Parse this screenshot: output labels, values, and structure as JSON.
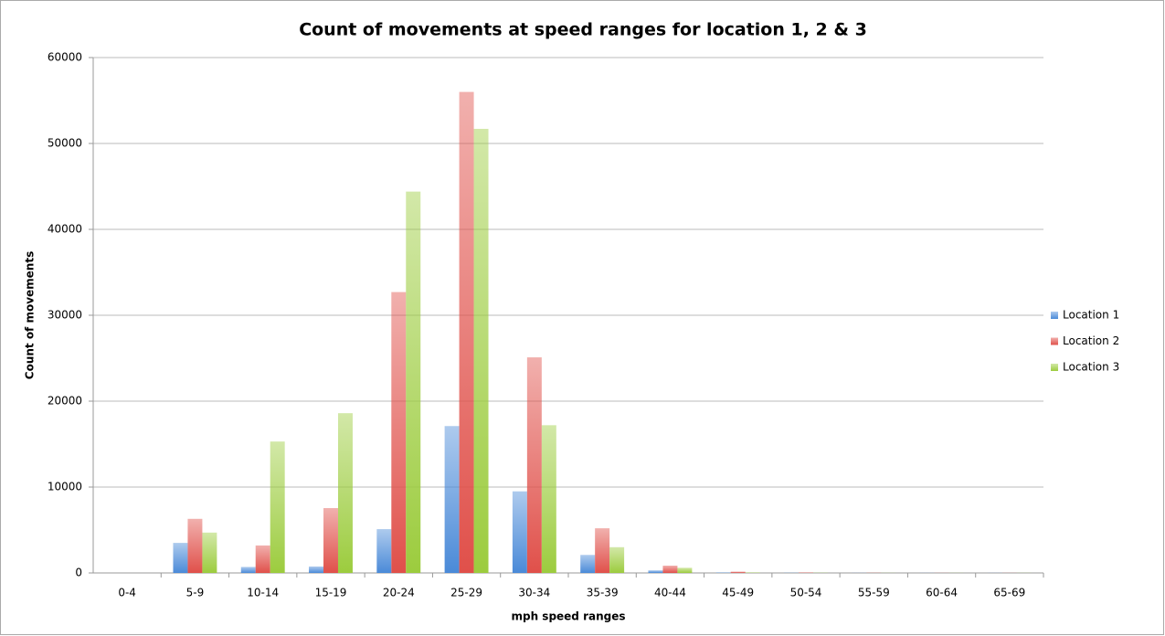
{
  "chart_data": {
    "type": "bar",
    "title": "Count of movements at speed ranges for location 1, 2 & 3",
    "x_label": "mph speed ranges",
    "y_label": "Count of movements",
    "categories": [
      "0-4",
      "5-9",
      "10-14",
      "15-19",
      "20-24",
      "25-29",
      "30-34",
      "35-39",
      "40-44",
      "45-49",
      "50-54",
      "55-59",
      "60-64",
      "65-69"
    ],
    "series": [
      {
        "name": "Location 1",
        "color": "#4a8ad8",
        "values": [
          0,
          3500,
          700,
          750,
          5100,
          17100,
          9500,
          2100,
          300,
          50,
          30,
          20,
          20,
          20
        ]
      },
      {
        "name": "Location 2",
        "color": "#e0504a",
        "values": [
          0,
          6300,
          3200,
          7550,
          32700,
          56000,
          25100,
          5200,
          850,
          150,
          50,
          30,
          20,
          20
        ]
      },
      {
        "name": "Location 3",
        "color": "#9ccc3e",
        "values": [
          0,
          4700,
          15300,
          18600,
          44400,
          51700,
          17200,
          3000,
          600,
          50,
          30,
          20,
          20,
          20
        ]
      }
    ],
    "ylim": [
      0,
      60000
    ],
    "yticks": [
      0,
      10000,
      20000,
      30000,
      40000,
      50000,
      60000
    ],
    "grid": true,
    "legend": "right"
  }
}
